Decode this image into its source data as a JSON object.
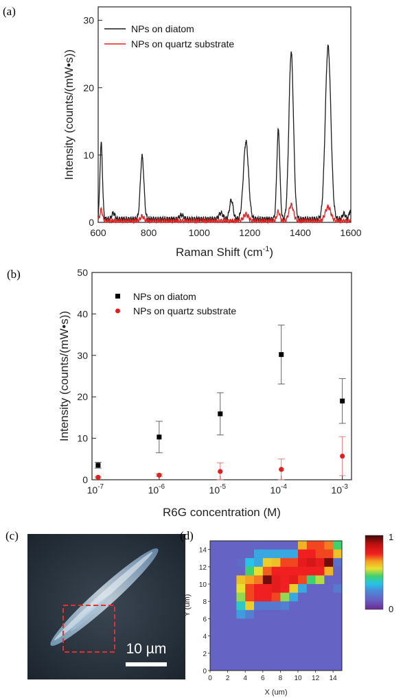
{
  "colors": {
    "diatom": "#1a1a1a",
    "quartz": "#e02020",
    "scale_box": "#e63030",
    "scale_bar": "#ffffff"
  },
  "panels": {
    "a_label": "(a)",
    "b_label": "(b)",
    "c_label": "(c)",
    "d_label": "(d)"
  },
  "micrograph": {
    "scale_bar_label": "10 µm"
  },
  "chart_data": [
    {
      "type": "line",
      "panel": "(a)",
      "xlabel": "Raman Shift (cm",
      "xlabel_sup": "-1",
      "xlabel_end": ")",
      "ylabel": "Intensity (counts/(mW•s))",
      "xlim": [
        600,
        1600
      ],
      "ylim": [
        0,
        32
      ],
      "x_ticks": [
        600,
        800,
        1000,
        1200,
        1400,
        1600
      ],
      "y_ticks": [
        0,
        10,
        20,
        30
      ],
      "legend_position": "top-left",
      "grid": false,
      "series": [
        {
          "name": "NPs on diatom",
          "color": "#1a1a1a",
          "baseline": 0.5,
          "peaks": [
            {
              "x": 612,
              "height": 11.2,
              "width": 5
            },
            {
              "x": 660,
              "height": 0.9,
              "width": 6
            },
            {
              "x": 774,
              "height": 9.3,
              "width": 7
            },
            {
              "x": 930,
              "height": 0.6,
              "width": 8
            },
            {
              "x": 1086,
              "height": 0.9,
              "width": 8
            },
            {
              "x": 1127,
              "height": 2.8,
              "width": 7
            },
            {
              "x": 1185,
              "height": 11.5,
              "width": 10
            },
            {
              "x": 1313,
              "height": 13.2,
              "width": 6
            },
            {
              "x": 1364,
              "height": 24.8,
              "width": 9
            },
            {
              "x": 1510,
              "height": 25.6,
              "width": 11
            },
            {
              "x": 1573,
              "height": 0.8,
              "width": 6
            },
            {
              "x": 1597,
              "height": 1.2,
              "width": 4
            }
          ]
        },
        {
          "name": "NPs on quartz substrate",
          "color": "#e02020",
          "baseline": 0.2,
          "peaks": [
            {
              "x": 612,
              "height": 1.7,
              "width": 5
            },
            {
              "x": 774,
              "height": 0.7,
              "width": 7
            },
            {
              "x": 1185,
              "height": 1.0,
              "width": 10
            },
            {
              "x": 1313,
              "height": 1.4,
              "width": 6
            },
            {
              "x": 1364,
              "height": 2.4,
              "width": 9
            },
            {
              "x": 1510,
              "height": 2.1,
              "width": 11
            }
          ]
        }
      ]
    },
    {
      "type": "scatter",
      "panel": "(b)",
      "xlabel": "R6G concentration (M)",
      "ylabel": "Intensity (counts/(mW•s))",
      "x_scale": "log",
      "x_ticks": [
        "10",
        "10",
        "10",
        "10",
        "10"
      ],
      "x_tick_exponents": [
        "-7",
        "-6",
        "-5",
        "-4",
        "-3"
      ],
      "x_exponents": [
        -7,
        -6,
        -5,
        -4,
        -3
      ],
      "xlim_exponent": [
        -7.1,
        -2.85
      ],
      "ylim": [
        0,
        50
      ],
      "y_ticks": [
        0,
        10,
        20,
        30,
        40,
        50
      ],
      "legend_position": "top-left",
      "grid": false,
      "series": [
        {
          "name": "NPs on diatom",
          "marker": "square",
          "color": "#000000",
          "points": [
            {
              "x": -7,
              "y": 3.5,
              "err": 0.7
            },
            {
              "x": -6,
              "y": 10.3,
              "err": 3.8
            },
            {
              "x": -5,
              "y": 15.9,
              "err": 5.1
            },
            {
              "x": -4,
              "y": 30.2,
              "err": 7.1
            },
            {
              "x": -3,
              "y": 19.0,
              "err": 5.4
            }
          ]
        },
        {
          "name": "NPs on quartz substrate",
          "marker": "circle",
          "color": "#e02020",
          "points": [
            {
              "x": -7,
              "y": 0.6,
              "err": 0.2
            },
            {
              "x": -6,
              "y": 1.1,
              "err": 0.3
            },
            {
              "x": -5,
              "y": 2.0,
              "err": 2.1
            },
            {
              "x": -4,
              "y": 2.5,
              "err": 2.5
            },
            {
              "x": -3,
              "y": 5.7,
              "err": 4.7
            }
          ]
        }
      ]
    },
    {
      "type": "heatmap",
      "panel": "(d)",
      "xlabel": "X (um)",
      "ylabel": "Y (um)",
      "xlim": [
        0,
        15
      ],
      "ylim": [
        0,
        15
      ],
      "x_ticks": [
        0,
        2,
        4,
        6,
        8,
        10,
        12,
        14
      ],
      "y_ticks": [
        0,
        2,
        4,
        6,
        8,
        10,
        12,
        14
      ],
      "colorbar_ticks": [
        "1",
        "0"
      ],
      "colorbar_range": [
        0,
        1
      ],
      "grid_rows_top_to_bottom": [
        [
          0.14,
          0.14,
          0.14,
          0.14,
          0.14,
          0.14,
          0.14,
          0.14,
          0.14,
          0.14,
          0.62,
          0.72,
          0.72,
          0.68,
          0.45
        ],
        [
          0.14,
          0.14,
          0.14,
          0.14,
          0.14,
          0.3,
          0.3,
          0.3,
          0.3,
          0.3,
          0.75,
          0.75,
          0.72,
          0.72,
          0.6
        ],
        [
          0.14,
          0.14,
          0.14,
          0.16,
          0.35,
          0.3,
          0.58,
          0.6,
          0.72,
          0.72,
          0.78,
          0.82,
          0.78,
          0.95,
          0.18
        ],
        [
          0.14,
          0.14,
          0.14,
          0.14,
          0.45,
          0.55,
          0.7,
          0.75,
          0.75,
          0.75,
          0.75,
          0.75,
          0.75,
          0.62,
          0.14
        ],
        [
          0.14,
          0.14,
          0.14,
          0.6,
          0.65,
          0.68,
          0.95,
          0.78,
          0.75,
          0.78,
          0.72,
          0.45,
          0.52,
          0.14,
          0.14
        ],
        [
          0.14,
          0.14,
          0.14,
          0.55,
          0.72,
          0.75,
          0.75,
          0.78,
          0.75,
          0.58,
          0.3,
          0.14,
          0.14,
          0.14,
          0.2
        ],
        [
          0.14,
          0.14,
          0.14,
          0.5,
          0.72,
          0.75,
          0.75,
          0.72,
          0.5,
          0.3,
          0.14,
          0.14,
          0.14,
          0.14,
          0.14
        ],
        [
          0.14,
          0.14,
          0.14,
          0.38,
          0.58,
          0.2,
          0.2,
          0.2,
          0.22,
          0.14,
          0.14,
          0.14,
          0.14,
          0.14,
          0.14
        ],
        [
          0.14,
          0.14,
          0.14,
          0.28,
          0.22,
          0.14,
          0.14,
          0.14,
          0.14,
          0.14,
          0.14,
          0.14,
          0.14,
          0.14,
          0.14
        ],
        [
          0.14,
          0.14,
          0.14,
          0.14,
          0.14,
          0.14,
          0.14,
          0.14,
          0.14,
          0.14,
          0.14,
          0.14,
          0.14,
          0.14,
          0.14
        ],
        [
          0.14,
          0.14,
          0.14,
          0.14,
          0.14,
          0.14,
          0.14,
          0.14,
          0.14,
          0.14,
          0.14,
          0.14,
          0.14,
          0.14,
          0.14
        ],
        [
          0.14,
          0.14,
          0.14,
          0.14,
          0.14,
          0.14,
          0.14,
          0.14,
          0.14,
          0.14,
          0.14,
          0.14,
          0.14,
          0.14,
          0.14
        ],
        [
          0.14,
          0.14,
          0.14,
          0.14,
          0.14,
          0.14,
          0.14,
          0.14,
          0.14,
          0.14,
          0.14,
          0.14,
          0.14,
          0.14,
          0.14
        ],
        [
          0.14,
          0.14,
          0.14,
          0.14,
          0.14,
          0.14,
          0.14,
          0.14,
          0.14,
          0.14,
          0.14,
          0.14,
          0.14,
          0.14,
          0.14
        ],
        [
          0.14,
          0.14,
          0.14,
          0.14,
          0.14,
          0.14,
          0.14,
          0.14,
          0.14,
          0.14,
          0.14,
          0.14,
          0.14,
          0.14,
          0.14
        ]
      ]
    }
  ]
}
